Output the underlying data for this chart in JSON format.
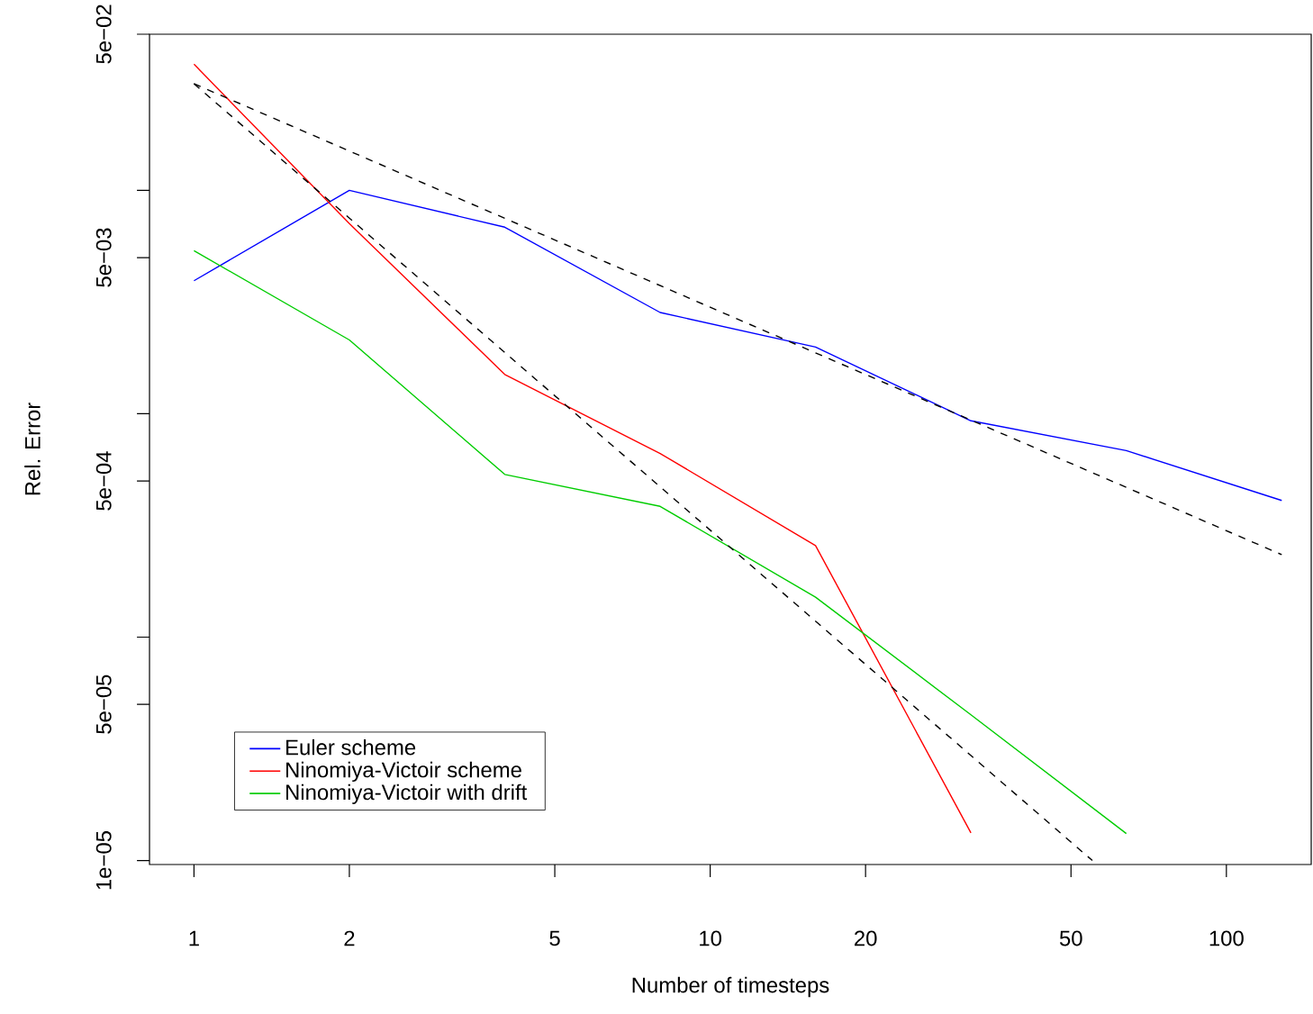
{
  "chart_data": {
    "type": "line",
    "xlabel": "Number of timesteps",
    "ylabel": "Rel. Error",
    "log": "xy",
    "x": [
      1,
      2,
      4,
      8,
      16,
      32,
      64,
      128
    ],
    "xlim": [
      0.82,
      146
    ],
    "ylim": [
      9.6e-06,
      0.05
    ],
    "xticks": [
      1,
      2,
      5,
      10,
      20,
      50,
      100
    ],
    "yticks": [
      {
        "value": 1e-05,
        "label": "1e−05"
      },
      {
        "value": 5e-05,
        "label": "5e−05"
      },
      {
        "value": 0.0001,
        "label": null
      },
      {
        "value": 0.0005,
        "label": "5e−04"
      },
      {
        "value": 0.001,
        "label": null
      },
      {
        "value": 0.005,
        "label": "5e−03"
      },
      {
        "value": 0.01,
        "label": null
      },
      {
        "value": 0.05,
        "label": "5e−02"
      }
    ],
    "legend": "bottom left",
    "series": [
      {
        "name": "Euler scheme",
        "color": "#0000ff",
        "values": [
          0.00394,
          0.01,
          0.00684,
          0.00284,
          0.00199,
          0.00093,
          0.000684,
          0.000409
        ]
      },
      {
        "name": "Ninomiya-Victoir scheme",
        "color": "#ff0000",
        "values": [
          0.0367,
          0.0071,
          0.0015,
          0.000664,
          0.000257,
          1.33e-05,
          null,
          null
        ]
      },
      {
        "name": "Ninomiya-Victoir with drift",
        "color": "#00cd00",
        "values": [
          0.00537,
          0.00214,
          0.000535,
          0.000385,
          0.000151,
          4.49e-05,
          1.32e-05,
          null
        ]
      },
      {
        "color": "#000000",
        "line_style": "dashed",
        "x": [
          1,
          128
        ],
        "values": [
          0.03,
          0.000234
        ]
      },
      {
        "color": "#000000",
        "line_style": "dashed",
        "x": [
          1,
          55
        ],
        "values": [
          0.03,
          1e-05
        ]
      }
    ]
  }
}
